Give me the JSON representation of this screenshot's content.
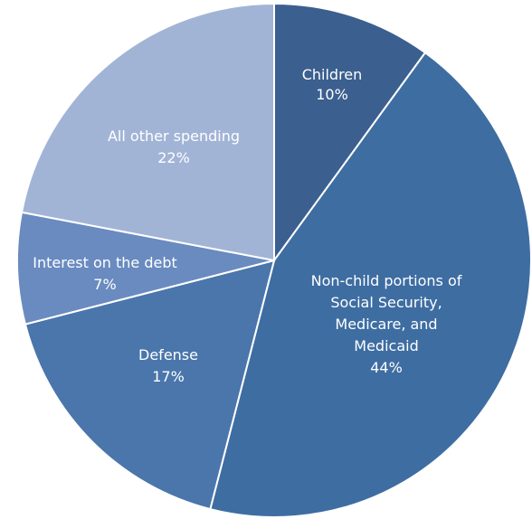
{
  "chart_data": {
    "type": "pie",
    "title": "",
    "start_angle_deg": 0,
    "direction": "clockwise",
    "slices": [
      {
        "label": "Children",
        "value": 10,
        "value_label": "10%",
        "color": "#3b5f8f"
      },
      {
        "label": "Non-child portions of Social Security, Medicare, and Medicaid",
        "value": 44,
        "value_label": "44%",
        "color": "#3e6da2"
      },
      {
        "label": "Defense",
        "value": 17,
        "value_label": "17%",
        "color": "#4a76ab"
      },
      {
        "label": "Interest on the debt",
        "value": 7,
        "value_label": "7%",
        "color": "#6a8bc0"
      },
      {
        "label": "All other spending",
        "value": 22,
        "value_label": "22%",
        "color": "#a2b4d6"
      }
    ]
  }
}
